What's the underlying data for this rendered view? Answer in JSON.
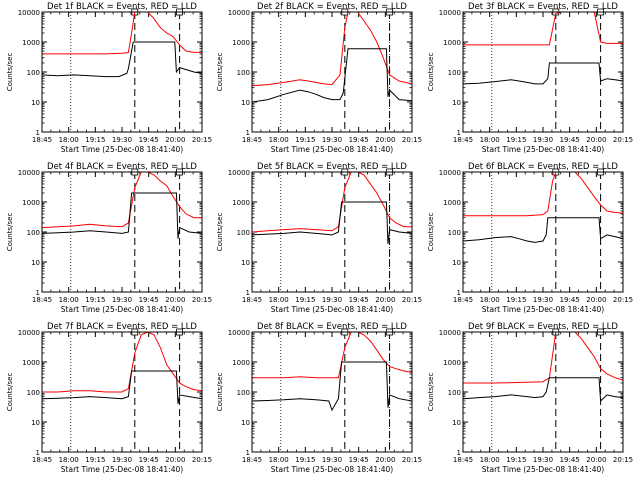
{
  "figure": {
    "ylabel": "Counts/sec",
    "xlabel": "Start Time (25-Dec-08 18:41:40)",
    "x_tick_labels": [
      "18:45",
      "18:00",
      "19:15",
      "19:30",
      "19:45",
      "20:00",
      "20:15"
    ],
    "y_tick_labels": [
      "1",
      "10",
      "100",
      "1000",
      "10000"
    ],
    "colors": {
      "events": "#000000",
      "lld": "#ff0000",
      "axes": "#000000"
    }
  },
  "chart_data": [
    {
      "type": "line",
      "title": "Det 1f BLACK = Events, RED = LLD",
      "yscale": "log",
      "ylim": [
        1,
        10000
      ],
      "x_tick_labels": [
        "18:45",
        "18:00",
        "19:15",
        "19:30",
        "19:45",
        "20:00",
        "20:15"
      ],
      "x_units": "minutes after 18:41:40",
      "xlim": [
        0,
        100
      ],
      "markers": {
        "dotted": [
          18
        ],
        "dashed": [
          58,
          86
        ]
      },
      "series": [
        {
          "name": "Events",
          "color": "#000000",
          "x": [
            0,
            10,
            20,
            30,
            40,
            48,
            53,
            54,
            57,
            83,
            84,
            86,
            95,
            100
          ],
          "y": [
            80,
            75,
            80,
            75,
            70,
            70,
            90,
            130,
            1000,
            1000,
            100,
            140,
            100,
            90
          ]
        },
        {
          "name": "LLD",
          "color": "#ff0000",
          "x": [
            0,
            20,
            40,
            50,
            54,
            56,
            58,
            62,
            66,
            70,
            74,
            78,
            82,
            86,
            90,
            95,
            100
          ],
          "y": [
            400,
            400,
            400,
            420,
            450,
            2000,
            10000,
            12000,
            12000,
            6000,
            3000,
            2000,
            1500,
            800,
            500,
            450,
            450
          ]
        }
      ]
    },
    {
      "type": "line",
      "title": "Det 2f BLACK = Events, RED = LLD",
      "yscale": "log",
      "ylim": [
        1,
        10000
      ],
      "x_tick_labels": [
        "18:45",
        "18:00",
        "19:15",
        "19:30",
        "19:45",
        "20:00",
        "20:15"
      ],
      "x_units": "minutes after 18:41:40",
      "xlim": [
        0,
        100
      ],
      "markers": {
        "dotted": [
          18,
          86
        ],
        "dashed": [
          58,
          86
        ]
      },
      "series": [
        {
          "name": "Events",
          "color": "#000000",
          "x": [
            0,
            10,
            20,
            30,
            35,
            40,
            45,
            50,
            55,
            57,
            60,
            84,
            85,
            86,
            92,
            100
          ],
          "y": [
            10,
            12,
            18,
            25,
            22,
            18,
            14,
            12,
            12,
            20,
            600,
            600,
            15,
            25,
            12,
            11
          ]
        },
        {
          "name": "LLD",
          "color": "#ff0000",
          "x": [
            0,
            10,
            20,
            30,
            35,
            40,
            45,
            50,
            55,
            58,
            60,
            62,
            66,
            70,
            74,
            78,
            82,
            86,
            92,
            100
          ],
          "y": [
            35,
            38,
            45,
            55,
            50,
            45,
            40,
            38,
            80,
            3000,
            10000,
            12000,
            12000,
            5000,
            2500,
            1000,
            300,
            80,
            50,
            40
          ]
        }
      ]
    },
    {
      "type": "line",
      "title": "Det 3f BLACK = Events, RED = LLD",
      "yscale": "log",
      "ylim": [
        1,
        10000
      ],
      "x_tick_labels": [
        "18:45",
        "18:00",
        "19:15",
        "19:30",
        "19:45",
        "20:00",
        "20:15"
      ],
      "x_units": "minutes after 18:41:40",
      "xlim": [
        0,
        100
      ],
      "markers": {
        "dotted": [
          18
        ],
        "dashed": [
          58,
          86
        ]
      },
      "series": [
        {
          "name": "Events",
          "color": "#000000",
          "x": [
            0,
            10,
            20,
            30,
            35,
            40,
            45,
            50,
            53,
            54,
            85,
            86,
            90,
            95,
            100
          ],
          "y": [
            40,
            42,
            48,
            55,
            50,
            45,
            40,
            40,
            60,
            200,
            200,
            50,
            60,
            55,
            50
          ]
        },
        {
          "name": "LLD",
          "color": "#ff0000",
          "x": [
            0,
            20,
            40,
            54,
            58,
            62,
            66,
            70,
            74,
            78,
            82,
            86,
            90,
            95,
            100
          ],
          "y": [
            800,
            800,
            800,
            800,
            9000,
            12000,
            12000,
            12000,
            12000,
            12000,
            12000,
            1000,
            900,
            900,
            900
          ]
        }
      ]
    },
    {
      "type": "line",
      "title": "Det 4f BLACK = Events, RED = LLD",
      "yscale": "log",
      "ylim": [
        1,
        10000
      ],
      "x_tick_labels": [
        "18:45",
        "18:00",
        "19:15",
        "19:30",
        "19:45",
        "20:00",
        "20:15"
      ],
      "x_units": "minutes after 18:41:40",
      "xlim": [
        0,
        100
      ],
      "markers": {
        "dotted": [
          18
        ],
        "dashed": [
          58,
          86
        ]
      },
      "series": [
        {
          "name": "Events",
          "color": "#000000",
          "x": [
            0,
            10,
            20,
            30,
            40,
            50,
            54,
            56,
            84,
            85,
            86,
            92,
            100
          ],
          "y": [
            90,
            95,
            100,
            110,
            100,
            90,
            100,
            2000,
            2000,
            60,
            140,
            100,
            90
          ]
        },
        {
          "name": "LLD",
          "color": "#ff0000",
          "x": [
            0,
            10,
            20,
            30,
            40,
            50,
            54,
            58,
            62,
            66,
            70,
            74,
            78,
            82,
            86,
            90,
            95,
            100
          ],
          "y": [
            140,
            150,
            160,
            180,
            160,
            150,
            200,
            3000,
            10000,
            12000,
            8000,
            5000,
            3500,
            1500,
            700,
            400,
            300,
            300
          ]
        }
      ]
    },
    {
      "type": "line",
      "title": "Det 5f BLACK = Events, RED = LLD",
      "yscale": "log",
      "ylim": [
        1,
        10000
      ],
      "x_tick_labels": [
        "18:45",
        "18:00",
        "19:15",
        "19:30",
        "19:45",
        "20:00",
        "20:15"
      ],
      "x_units": "minutes after 18:41:40",
      "xlim": [
        0,
        100
      ],
      "markers": {
        "dotted": [
          18,
          86
        ],
        "dashed": [
          58,
          86
        ]
      },
      "series": [
        {
          "name": "Events",
          "color": "#000000",
          "x": [
            0,
            10,
            20,
            30,
            40,
            50,
            54,
            56,
            84,
            85,
            86,
            92,
            100
          ],
          "y": [
            80,
            85,
            90,
            100,
            90,
            80,
            100,
            1000,
            1000,
            40,
            120,
            100,
            90
          ]
        },
        {
          "name": "LLD",
          "color": "#ff0000",
          "x": [
            0,
            10,
            20,
            30,
            40,
            50,
            54,
            58,
            62,
            66,
            70,
            74,
            78,
            82,
            86,
            90,
            95,
            100
          ],
          "y": [
            100,
            110,
            120,
            130,
            120,
            110,
            150,
            3000,
            12000,
            12000,
            8000,
            4000,
            2000,
            800,
            300,
            200,
            150,
            150
          ]
        }
      ]
    },
    {
      "type": "line",
      "title": "Det 6f BLACK = Events, RED = LLD",
      "yscale": "log",
      "ylim": [
        1,
        10000
      ],
      "x_tick_labels": [
        "18:45",
        "18:00",
        "19:15",
        "19:30",
        "19:45",
        "20:00",
        "20:15"
      ],
      "x_units": "minutes after 18:41:40",
      "xlim": [
        0,
        100
      ],
      "markers": {
        "dotted": [
          18
        ],
        "dashed": [
          58,
          86
        ]
      },
      "series": [
        {
          "name": "Events",
          "color": "#000000",
          "x": [
            0,
            10,
            20,
            30,
            35,
            40,
            45,
            50,
            52,
            53,
            85,
            86,
            90,
            95,
            100
          ],
          "y": [
            50,
            55,
            65,
            70,
            60,
            50,
            45,
            50,
            80,
            300,
            300,
            60,
            80,
            70,
            60
          ]
        },
        {
          "name": "LLD",
          "color": "#ff0000",
          "x": [
            0,
            20,
            40,
            50,
            53,
            56,
            58,
            62,
            66,
            70,
            74,
            78,
            82,
            86,
            90,
            95,
            100
          ],
          "y": [
            350,
            350,
            350,
            380,
            500,
            5000,
            12000,
            12000,
            12000,
            10000,
            6000,
            3000,
            1500,
            800,
            500,
            450,
            420
          ]
        }
      ]
    },
    {
      "type": "line",
      "title": "Det 7f BLACK = Events, RED = LLD",
      "yscale": "log",
      "ylim": [
        1,
        10000
      ],
      "x_tick_labels": [
        "18:45",
        "18:00",
        "19:15",
        "19:30",
        "19:45",
        "20:00",
        "20:15"
      ],
      "x_units": "minutes after 18:41:40",
      "xlim": [
        0,
        100
      ],
      "markers": {
        "dotted": [
          18
        ],
        "dashed": [
          58,
          86
        ]
      },
      "series": [
        {
          "name": "Events",
          "color": "#000000",
          "x": [
            0,
            10,
            20,
            30,
            40,
            50,
            54,
            56,
            84,
            85,
            86,
            92,
            100
          ],
          "y": [
            60,
            62,
            65,
            70,
            65,
            60,
            70,
            500,
            500,
            40,
            80,
            70,
            60
          ]
        },
        {
          "name": "LLD",
          "color": "#ff0000",
          "x": [
            0,
            10,
            20,
            30,
            40,
            50,
            54,
            58,
            62,
            66,
            70,
            74,
            78,
            82,
            86,
            90,
            95,
            100
          ],
          "y": [
            100,
            100,
            110,
            110,
            100,
            100,
            130,
            2000,
            8000,
            12000,
            8000,
            3000,
            800,
            400,
            200,
            150,
            120,
            110
          ]
        }
      ]
    },
    {
      "type": "line",
      "title": "Det 8f BLACK = Events, RED = LLD",
      "yscale": "log",
      "ylim": [
        1,
        10000
      ],
      "x_tick_labels": [
        "18:45",
        "18:00",
        "19:15",
        "19:30",
        "19:45",
        "20:00",
        "20:15"
      ],
      "x_units": "minutes after 18:41:40",
      "xlim": [
        0,
        100
      ],
      "markers": {
        "dotted": [
          18,
          86
        ],
        "dashed": [
          58,
          86
        ]
      },
      "series": [
        {
          "name": "Events",
          "color": "#000000",
          "x": [
            0,
            10,
            20,
            30,
            40,
            48,
            50,
            54,
            56,
            84,
            85,
            86,
            92,
            100
          ],
          "y": [
            50,
            52,
            55,
            60,
            55,
            50,
            25,
            60,
            1000,
            1000,
            30,
            80,
            60,
            50
          ]
        },
        {
          "name": "LLD",
          "color": "#ff0000",
          "x": [
            0,
            10,
            20,
            30,
            40,
            48,
            54,
            58,
            62,
            66,
            70,
            74,
            78,
            82,
            86,
            90,
            95,
            100
          ],
          "y": [
            300,
            300,
            300,
            320,
            300,
            300,
            300,
            3000,
            10000,
            12000,
            8000,
            5000,
            2500,
            1200,
            700,
            600,
            500,
            450
          ]
        }
      ]
    },
    {
      "type": "line",
      "title": "Det 9f BLACK = Events, RED = LLD",
      "yscale": "log",
      "ylim": [
        1,
        10000
      ],
      "x_tick_labels": [
        "18:45",
        "18:00",
        "19:15",
        "19:30",
        "19:45",
        "20:00",
        "20:15"
      ],
      "x_units": "minutes after 18:41:40",
      "xlim": [
        0,
        100
      ],
      "markers": {
        "dotted": [
          18
        ],
        "dashed": [
          58,
          86
        ]
      },
      "series": [
        {
          "name": "Events",
          "color": "#000000",
          "x": [
            0,
            10,
            20,
            30,
            35,
            40,
            45,
            50,
            52,
            54,
            85,
            86,
            90,
            95,
            100
          ],
          "y": [
            60,
            65,
            70,
            80,
            75,
            70,
            65,
            70,
            100,
            300,
            300,
            50,
            80,
            70,
            65
          ]
        },
        {
          "name": "LLD",
          "color": "#ff0000",
          "x": [
            0,
            20,
            40,
            50,
            54,
            58,
            62,
            66,
            70,
            74,
            78,
            82,
            86,
            90,
            95,
            100
          ],
          "y": [
            200,
            200,
            210,
            220,
            300,
            10000,
            12000,
            12000,
            10000,
            6000,
            3000,
            1500,
            600,
            400,
            300,
            250
          ]
        }
      ]
    }
  ]
}
